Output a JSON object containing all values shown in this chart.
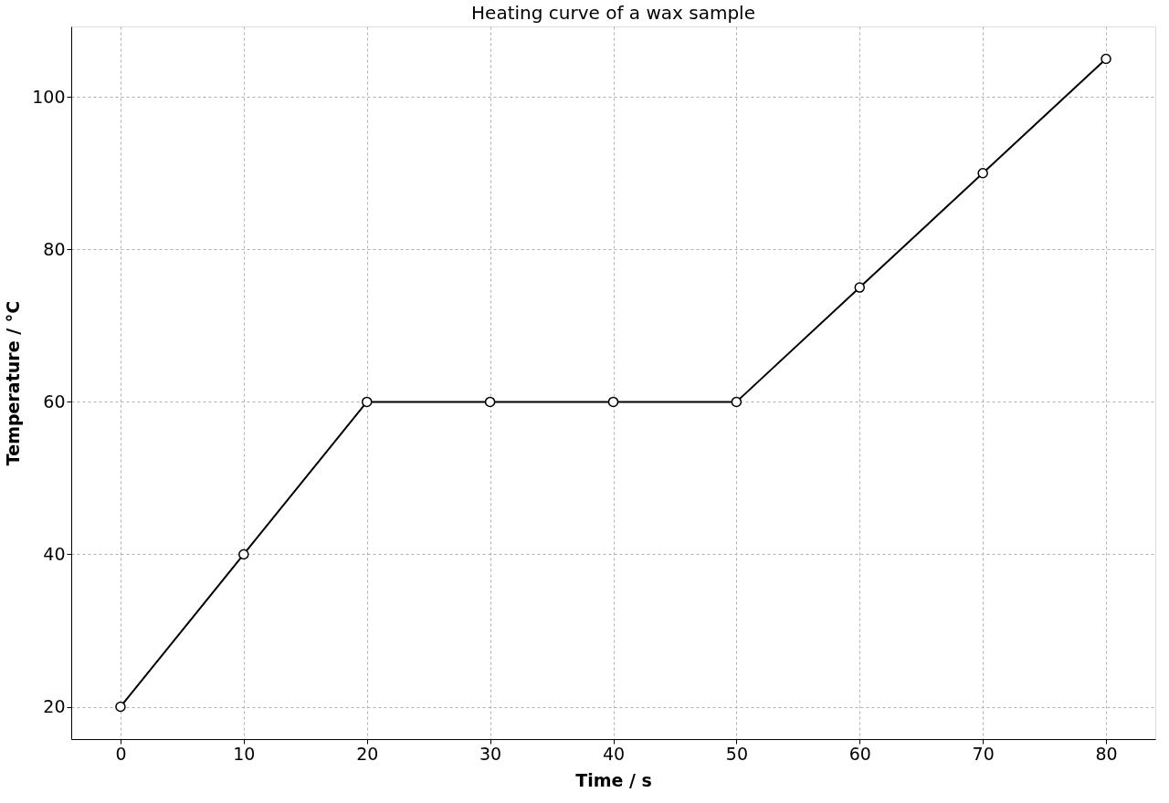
{
  "chart_data": {
    "type": "line",
    "title": "Heating curve of a wax sample",
    "xlabel": "Time / s",
    "ylabel": "Temperature / °C",
    "x": [
      0,
      10,
      20,
      30,
      40,
      50,
      60,
      70,
      80
    ],
    "series": [
      {
        "color": "#000000",
        "values": [
          20,
          40,
          60,
          60,
          60,
          60,
          75,
          90,
          105
        ]
      }
    ],
    "xlim": [
      -4,
      84
    ],
    "ylim": [
      15.75,
      109.25
    ],
    "xticks": [
      0,
      10,
      20,
      30,
      40,
      50,
      60,
      70,
      80
    ],
    "yticks": [
      20,
      40,
      60,
      80,
      100
    ],
    "grid": true,
    "marker": "circle",
    "line_style": "solid"
  }
}
